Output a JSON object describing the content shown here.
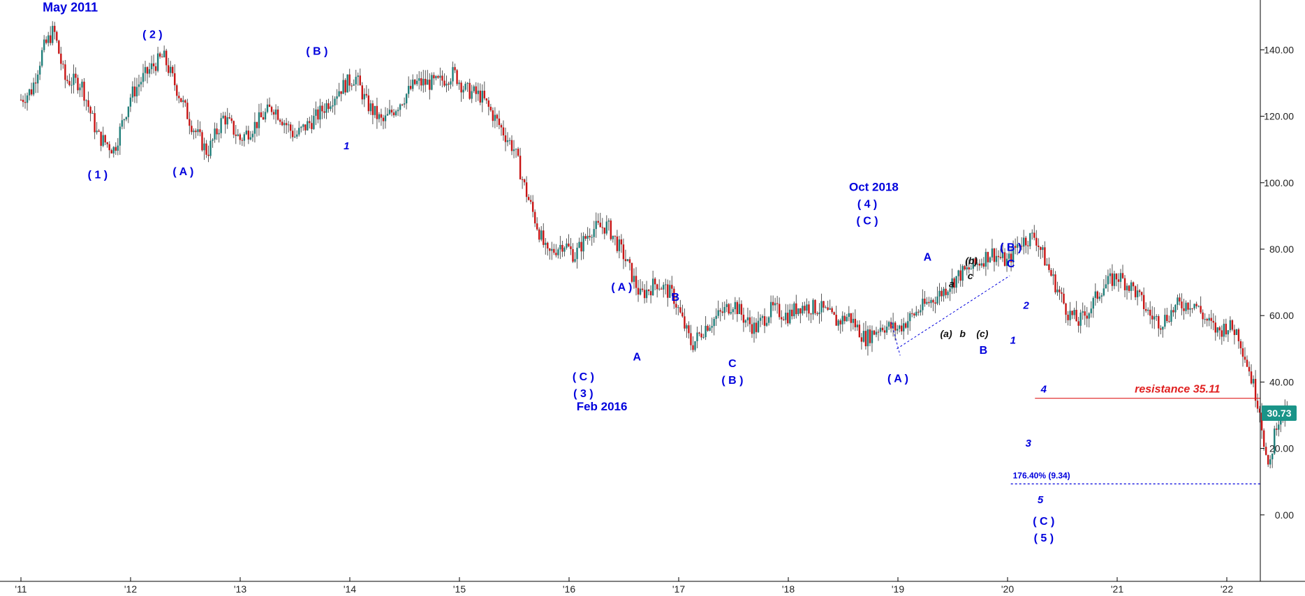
{
  "chart_data": {
    "type": "candlestick",
    "title": "",
    "xlabel": "",
    "ylabel": "",
    "ylim": [
      -20,
      155
    ],
    "x_range": [
      2011.0,
      2022.8
    ],
    "y_ticks": [
      {
        "value": 140,
        "label": "140.00"
      },
      {
        "value": 120,
        "label": "120.00"
      },
      {
        "value": 100,
        "label": "100.00"
      },
      {
        "value": 80,
        "label": "80.00"
      },
      {
        "value": 60,
        "label": "60.00"
      },
      {
        "value": 40,
        "label": "40.00"
      },
      {
        "value": 20,
        "label": "20.00"
      },
      {
        "value": 0,
        "label": "0.00"
      }
    ],
    "x_ticks": [
      {
        "value": 2011,
        "label": "'11"
      },
      {
        "value": 2012,
        "label": "'12"
      },
      {
        "value": 2013,
        "label": "'13"
      },
      {
        "value": 2014,
        "label": "'14"
      },
      {
        "value": 2015,
        "label": "'15"
      },
      {
        "value": 2016,
        "label": "'16"
      },
      {
        "value": 2017,
        "label": "'17"
      },
      {
        "value": 2018,
        "label": "'18"
      },
      {
        "value": 2019,
        "label": "'19"
      },
      {
        "value": 2020,
        "label": "'20"
      },
      {
        "value": 2021,
        "label": "'21"
      },
      {
        "value": 2022,
        "label": "'22"
      }
    ],
    "colors": {
      "up": "#1f7f7a",
      "down": "#c81414",
      "wick": "#555555",
      "wave": "#0000dd",
      "subwave": "#111111",
      "resistance": "#e02020",
      "price_badge": "#1a9488"
    },
    "price_path": [
      [
        2011.0,
        125
      ],
      [
        2011.1,
        128
      ],
      [
        2011.2,
        140
      ],
      [
        2011.3,
        146
      ],
      [
        2011.4,
        131
      ],
      [
        2011.55,
        130
      ],
      [
        2011.7,
        114
      ],
      [
        2011.85,
        110
      ],
      [
        2012.0,
        126
      ],
      [
        2012.1,
        131
      ],
      [
        2012.2,
        135
      ],
      [
        2012.3,
        138
      ],
      [
        2012.4,
        130
      ],
      [
        2012.55,
        118
      ],
      [
        2012.7,
        109
      ],
      [
        2012.85,
        120
      ],
      [
        2013.0,
        113
      ],
      [
        2013.15,
        118
      ],
      [
        2013.3,
        123
      ],
      [
        2013.5,
        114
      ],
      [
        2013.7,
        120
      ],
      [
        2013.9,
        128
      ],
      [
        2014.05,
        132
      ],
      [
        2014.15,
        124
      ],
      [
        2014.3,
        118
      ],
      [
        2014.45,
        124
      ],
      [
        2014.6,
        130
      ],
      [
        2014.8,
        130
      ],
      [
        2014.95,
        133
      ],
      [
        2015.05,
        128
      ],
      [
        2015.2,
        126
      ],
      [
        2015.35,
        118
      ],
      [
        2015.5,
        110
      ],
      [
        2015.6,
        98
      ],
      [
        2015.7,
        88
      ],
      [
        2015.8,
        78
      ],
      [
        2015.95,
        82
      ],
      [
        2016.05,
        78
      ],
      [
        2016.2,
        86
      ],
      [
        2016.35,
        87
      ],
      [
        2016.5,
        78
      ],
      [
        2016.65,
        66
      ],
      [
        2016.8,
        70
      ],
      [
        2016.95,
        66
      ],
      [
        2017.05,
        57
      ],
      [
        2017.12,
        51
      ],
      [
        2017.25,
        57
      ],
      [
        2017.4,
        61
      ],
      [
        2017.5,
        64
      ],
      [
        2017.6,
        59
      ],
      [
        2017.7,
        56
      ],
      [
        2017.85,
        62
      ],
      [
        2018.0,
        60
      ],
      [
        2018.1,
        63
      ],
      [
        2018.3,
        62
      ],
      [
        2018.45,
        58
      ],
      [
        2018.55,
        60
      ],
      [
        2018.7,
        53
      ],
      [
        2018.85,
        57
      ],
      [
        2019.0,
        56
      ],
      [
        2019.2,
        62
      ],
      [
        2019.4,
        67
      ],
      [
        2019.55,
        72
      ],
      [
        2019.7,
        75
      ],
      [
        2019.85,
        79
      ],
      [
        2020.0,
        76
      ],
      [
        2020.1,
        82
      ],
      [
        2020.25,
        84
      ],
      [
        2020.4,
        72
      ],
      [
        2020.55,
        61
      ],
      [
        2020.65,
        58
      ],
      [
        2020.75,
        62
      ],
      [
        2020.85,
        68
      ],
      [
        2021.0,
        72
      ],
      [
        2021.15,
        68
      ],
      [
        2021.3,
        60
      ],
      [
        2021.4,
        58
      ],
      [
        2021.55,
        63
      ],
      [
        2021.7,
        64
      ],
      [
        2021.8,
        59
      ],
      [
        2021.92,
        55
      ],
      [
        2022.0,
        57
      ],
      [
        2022.1,
        55
      ],
      [
        2022.2,
        44
      ],
      [
        2022.3,
        32
      ],
      [
        2022.38,
        12
      ],
      [
        2022.45,
        28
      ],
      [
        2022.55,
        30.73
      ]
    ],
    "reference_lines": [
      {
        "kind": "resistance",
        "value": 35.11,
        "x_start": 2020.25,
        "label": "resistance 35.11"
      },
      {
        "kind": "fibonacci",
        "value": 9.34,
        "x_start": 2020.03,
        "label": "176.40% (9.34)"
      }
    ],
    "last_price_badge": "30.73",
    "annotations": [
      {
        "text": "May 2011",
        "x": 2011.45,
        "y": 151.5,
        "style": "wave",
        "size": 18
      },
      {
        "text": "( 2 )",
        "x": 2012.2,
        "y": 143.5,
        "style": "wave",
        "size": 16
      },
      {
        "text": "( 1 )",
        "x": 2011.7,
        "y": 101.3,
        "style": "wave",
        "size": 16
      },
      {
        "text": "( A )",
        "x": 2012.48,
        "y": 102.3,
        "style": "wave",
        "size": 16
      },
      {
        "text": "( B )",
        "x": 2013.7,
        "y": 138.5,
        "style": "wave",
        "size": 16
      },
      {
        "text": "1",
        "x": 2013.97,
        "y": 110.0,
        "style": "wave-italic",
        "size": 15
      },
      {
        "text": "( A )",
        "x": 2016.48,
        "y": 67.5,
        "style": "wave",
        "size": 16
      },
      {
        "text": "B",
        "x": 2016.97,
        "y": 64.5,
        "style": "wave",
        "size": 16
      },
      {
        "text": "A",
        "x": 2016.62,
        "y": 46.5,
        "style": "wave",
        "size": 16
      },
      {
        "text": "( C )",
        "x": 2016.13,
        "y": 40.5,
        "style": "wave",
        "size": 16
      },
      {
        "text": "( 3 )",
        "x": 2016.13,
        "y": 35.5,
        "style": "wave",
        "size": 16
      },
      {
        "text": "Feb 2016",
        "x": 2016.3,
        "y": 31.5,
        "style": "wave",
        "size": 17
      },
      {
        "text": "C",
        "x": 2017.49,
        "y": 44.5,
        "style": "wave",
        "size": 16
      },
      {
        "text": "( B )",
        "x": 2017.49,
        "y": 39.5,
        "style": "wave",
        "size": 16
      },
      {
        "text": "Oct 2018",
        "x": 2018.78,
        "y": 97.5,
        "style": "wave",
        "size": 17
      },
      {
        "text": "( 4 )",
        "x": 2018.72,
        "y": 92.5,
        "style": "wave",
        "size": 16
      },
      {
        "text": "( C )",
        "x": 2018.72,
        "y": 87.5,
        "style": "wave",
        "size": 16
      },
      {
        "text": "( A )",
        "x": 2019.0,
        "y": 40.0,
        "style": "wave",
        "size": 16
      },
      {
        "text": "A",
        "x": 2019.27,
        "y": 76.5,
        "style": "wave",
        "size": 16
      },
      {
        "text": "a",
        "x": 2019.49,
        "y": 68.5,
        "style": "subwave",
        "size": 14
      },
      {
        "text": "(b)",
        "x": 2019.67,
        "y": 75.5,
        "style": "subwave",
        "size": 14
      },
      {
        "text": "c",
        "x": 2019.66,
        "y": 71.0,
        "style": "subwave",
        "size": 14
      },
      {
        "text": "( B )",
        "x": 2020.03,
        "y": 79.5,
        "style": "wave",
        "size": 16
      },
      {
        "text": "C",
        "x": 2020.03,
        "y": 74.5,
        "style": "wave",
        "size": 16
      },
      {
        "text": "(a)",
        "x": 2019.44,
        "y": 53.5,
        "style": "subwave",
        "size": 14
      },
      {
        "text": "b",
        "x": 2019.59,
        "y": 53.5,
        "style": "subwave",
        "size": 14
      },
      {
        "text": "(c)",
        "x": 2019.77,
        "y": 53.5,
        "style": "subwave",
        "size": 14
      },
      {
        "text": "B",
        "x": 2019.78,
        "y": 48.5,
        "style": "wave",
        "size": 16
      },
      {
        "text": "2",
        "x": 2020.17,
        "y": 62.0,
        "style": "wave-italic",
        "size": 15
      },
      {
        "text": "1",
        "x": 2020.05,
        "y": 51.5,
        "style": "wave-italic",
        "size": 15
      },
      {
        "text": "4",
        "x": 2020.33,
        "y": 36.8,
        "style": "wave-italic",
        "size": 15
      },
      {
        "text": "3",
        "x": 2020.19,
        "y": 20.5,
        "style": "wave-italic",
        "size": 15
      },
      {
        "text": "5",
        "x": 2020.3,
        "y": 3.5,
        "style": "wave-italic",
        "size": 15
      },
      {
        "text": "( C )",
        "x": 2020.33,
        "y": -3.0,
        "style": "wave",
        "size": 16
      },
      {
        "text": "( 5 )",
        "x": 2020.33,
        "y": -8.0,
        "style": "wave",
        "size": 16
      },
      {
        "text": "resistance 35.11",
        "x": 2021.55,
        "y": 36.8,
        "style": "resistance",
        "size": 16
      },
      {
        "text": "176.40% (9.34)",
        "x": 2020.31,
        "y": 11.0,
        "style": "fib",
        "size": 12
      }
    ],
    "trend_channel": [
      {
        "from": [
          2018.99,
          50.0
        ],
        "to": [
          2020.02,
          72.0
        ]
      },
      {
        "from": [
          2018.94,
          58.0
        ],
        "to": [
          2019.02,
          48.0
        ]
      }
    ]
  }
}
